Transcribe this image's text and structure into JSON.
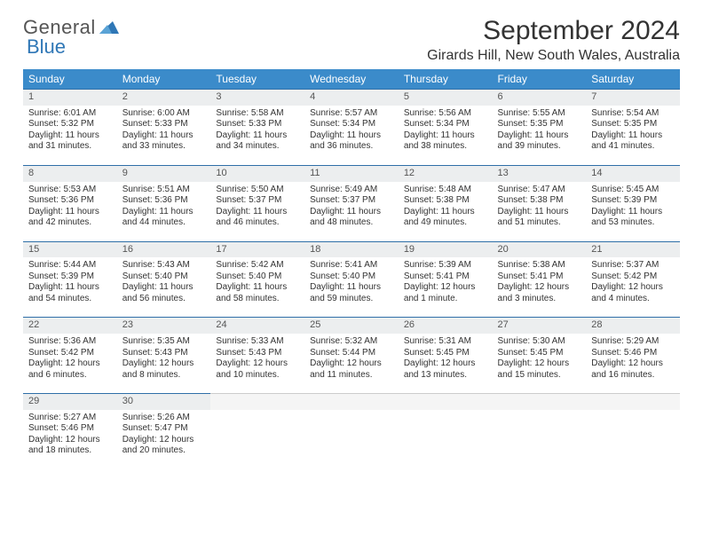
{
  "brand": {
    "word1": "General",
    "word2": "Blue",
    "triangle_color": "#2f77b6"
  },
  "title": {
    "month": "September 2024",
    "location": "Girards Hill, New South Wales, Australia"
  },
  "style": {
    "header_bg": "#3b8bca",
    "header_fg": "#ffffff",
    "daynum_bg": "#eceeef",
    "daynum_border": "#2f6fa8",
    "font": "Arial"
  },
  "weekdays": [
    "Sunday",
    "Monday",
    "Tuesday",
    "Wednesday",
    "Thursday",
    "Friday",
    "Saturday"
  ],
  "days": [
    {
      "n": "1",
      "sr": "6:01 AM",
      "ss": "5:32 PM",
      "dl": "11 hours and 31 minutes."
    },
    {
      "n": "2",
      "sr": "6:00 AM",
      "ss": "5:33 PM",
      "dl": "11 hours and 33 minutes."
    },
    {
      "n": "3",
      "sr": "5:58 AM",
      "ss": "5:33 PM",
      "dl": "11 hours and 34 minutes."
    },
    {
      "n": "4",
      "sr": "5:57 AM",
      "ss": "5:34 PM",
      "dl": "11 hours and 36 minutes."
    },
    {
      "n": "5",
      "sr": "5:56 AM",
      "ss": "5:34 PM",
      "dl": "11 hours and 38 minutes."
    },
    {
      "n": "6",
      "sr": "5:55 AM",
      "ss": "5:35 PM",
      "dl": "11 hours and 39 minutes."
    },
    {
      "n": "7",
      "sr": "5:54 AM",
      "ss": "5:35 PM",
      "dl": "11 hours and 41 minutes."
    },
    {
      "n": "8",
      "sr": "5:53 AM",
      "ss": "5:36 PM",
      "dl": "11 hours and 42 minutes."
    },
    {
      "n": "9",
      "sr": "5:51 AM",
      "ss": "5:36 PM",
      "dl": "11 hours and 44 minutes."
    },
    {
      "n": "10",
      "sr": "5:50 AM",
      "ss": "5:37 PM",
      "dl": "11 hours and 46 minutes."
    },
    {
      "n": "11",
      "sr": "5:49 AM",
      "ss": "5:37 PM",
      "dl": "11 hours and 48 minutes."
    },
    {
      "n": "12",
      "sr": "5:48 AM",
      "ss": "5:38 PM",
      "dl": "11 hours and 49 minutes."
    },
    {
      "n": "13",
      "sr": "5:47 AM",
      "ss": "5:38 PM",
      "dl": "11 hours and 51 minutes."
    },
    {
      "n": "14",
      "sr": "5:45 AM",
      "ss": "5:39 PM",
      "dl": "11 hours and 53 minutes."
    },
    {
      "n": "15",
      "sr": "5:44 AM",
      "ss": "5:39 PM",
      "dl": "11 hours and 54 minutes."
    },
    {
      "n": "16",
      "sr": "5:43 AM",
      "ss": "5:40 PM",
      "dl": "11 hours and 56 minutes."
    },
    {
      "n": "17",
      "sr": "5:42 AM",
      "ss": "5:40 PM",
      "dl": "11 hours and 58 minutes."
    },
    {
      "n": "18",
      "sr": "5:41 AM",
      "ss": "5:40 PM",
      "dl": "11 hours and 59 minutes."
    },
    {
      "n": "19",
      "sr": "5:39 AM",
      "ss": "5:41 PM",
      "dl": "12 hours and 1 minute."
    },
    {
      "n": "20",
      "sr": "5:38 AM",
      "ss": "5:41 PM",
      "dl": "12 hours and 3 minutes."
    },
    {
      "n": "21",
      "sr": "5:37 AM",
      "ss": "5:42 PM",
      "dl": "12 hours and 4 minutes."
    },
    {
      "n": "22",
      "sr": "5:36 AM",
      "ss": "5:42 PM",
      "dl": "12 hours and 6 minutes."
    },
    {
      "n": "23",
      "sr": "5:35 AM",
      "ss": "5:43 PM",
      "dl": "12 hours and 8 minutes."
    },
    {
      "n": "24",
      "sr": "5:33 AM",
      "ss": "5:43 PM",
      "dl": "12 hours and 10 minutes."
    },
    {
      "n": "25",
      "sr": "5:32 AM",
      "ss": "5:44 PM",
      "dl": "12 hours and 11 minutes."
    },
    {
      "n": "26",
      "sr": "5:31 AM",
      "ss": "5:45 PM",
      "dl": "12 hours and 13 minutes."
    },
    {
      "n": "27",
      "sr": "5:30 AM",
      "ss": "5:45 PM",
      "dl": "12 hours and 15 minutes."
    },
    {
      "n": "28",
      "sr": "5:29 AM",
      "ss": "5:46 PM",
      "dl": "12 hours and 16 minutes."
    },
    {
      "n": "29",
      "sr": "5:27 AM",
      "ss": "5:46 PM",
      "dl": "12 hours and 18 minutes."
    },
    {
      "n": "30",
      "sr": "5:26 AM",
      "ss": "5:47 PM",
      "dl": "12 hours and 20 minutes."
    }
  ],
  "labels": {
    "sunrise": "Sunrise: ",
    "sunset": "Sunset: ",
    "daylight": "Daylight: "
  }
}
